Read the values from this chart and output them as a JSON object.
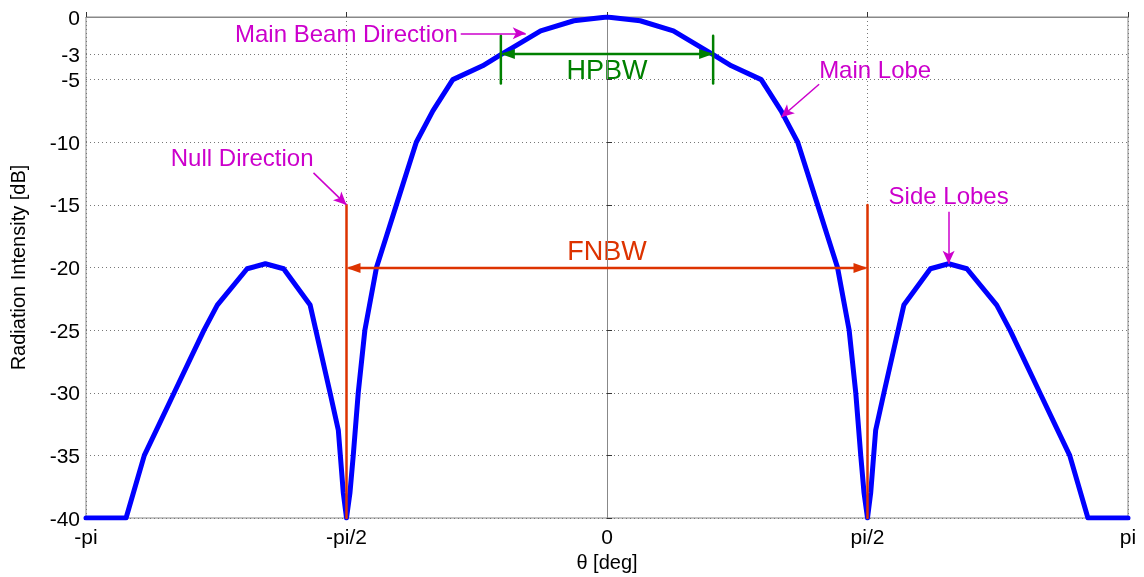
{
  "chart_data": {
    "type": "line",
    "xlabel": "θ [deg]",
    "ylabel": "Radiation Intensity [dB]",
    "xlim": [
      -3.1416,
      3.1416
    ],
    "ylim": [
      -40,
      0
    ],
    "xticks": [
      {
        "value": -3.1416,
        "label": "-pi"
      },
      {
        "value": -1.5708,
        "label": "-pi/2"
      },
      0,
      {
        "value": 1.5708,
        "label": "pi/2"
      },
      {
        "value": 3.1416,
        "label": "pi"
      }
    ],
    "yticks": [
      0,
      -3,
      -5,
      -10,
      -15,
      -20,
      -25,
      -30,
      -35,
      -40
    ],
    "grid": true,
    "marker": "none",
    "line_style": "solid",
    "series": [
      {
        "color": "#0000ff",
        "x": [
          -3.1416,
          -2.9,
          -2.79,
          -2.7,
          -2.61,
          -2.52,
          -2.43,
          -2.35,
          -2.17,
          -2.06,
          -1.95,
          -1.79,
          -1.67,
          -1.62,
          -1.59,
          -1.5708,
          -1.55,
          -1.53,
          -1.5,
          -1.46,
          -1.39,
          -1.33,
          -1.27,
          -1.21,
          -1.15,
          -1.05,
          -0.93,
          -0.75,
          -0.64,
          -0.4,
          -0.2,
          0,
          0.2,
          0.4,
          0.64,
          0.75,
          0.93,
          1.05,
          1.15,
          1.21,
          1.27,
          1.33,
          1.39,
          1.46,
          1.5,
          1.53,
          1.55,
          1.5708,
          1.59,
          1.62,
          1.67,
          1.79,
          1.95,
          2.06,
          2.17,
          2.35,
          2.43,
          2.52,
          2.61,
          2.7,
          2.79,
          2.9,
          3.1416
        ],
        "values": [
          -40,
          -40,
          -35,
          -32.5,
          -30,
          -27.5,
          -25,
          -23,
          -20.1,
          -19.7,
          -20.1,
          -23,
          -30,
          -33,
          -38,
          -40,
          -38,
          -35,
          -30,
          -25,
          -20,
          -17.5,
          -15,
          -12.5,
          -10,
          -7.5,
          -5,
          -3.9,
          -3,
          -1.1,
          -0.3,
          0,
          -0.3,
          -1.1,
          -3,
          -3.9,
          -5,
          -7.5,
          -10,
          -12.5,
          -15,
          -17.5,
          -20,
          -25,
          -30,
          -35,
          -38,
          -40,
          -38,
          -33,
          -30,
          -23,
          -20.1,
          -19.7,
          -20.1,
          -23,
          -25,
          -27.5,
          -30,
          -32.5,
          -35,
          -40,
          -40
        ]
      },
      {
        "color": "#dd3300",
        "x": [
          -1.5708,
          -1.5708
        ],
        "values": [
          -40,
          -15
        ]
      },
      {
        "color": "#dd3300",
        "x": [
          1.5708,
          1.5708
        ],
        "values": [
          -40,
          -15
        ]
      },
      {
        "color": "#008000",
        "x": [
          -0.64,
          -0.64
        ],
        "values": [
          -1.5,
          -5.3
        ]
      },
      {
        "color": "#008000",
        "x": [
          0.64,
          0.64
        ],
        "values": [
          -1.5,
          -5.3
        ]
      }
    ],
    "annotations": [
      "HPBW",
      "FNBW",
      {
        "text": "Main Beam Direction",
        "x": -0.49,
        "y": -1.3
      },
      {
        "text": "Main Lobe",
        "x": 1.05,
        "y": -8
      },
      {
        "text": "Null Direction",
        "x": -1.5708,
        "y": -15
      },
      {
        "text": "Side Lobes",
        "x": 2.06,
        "y": -19.7
      }
    ]
  }
}
